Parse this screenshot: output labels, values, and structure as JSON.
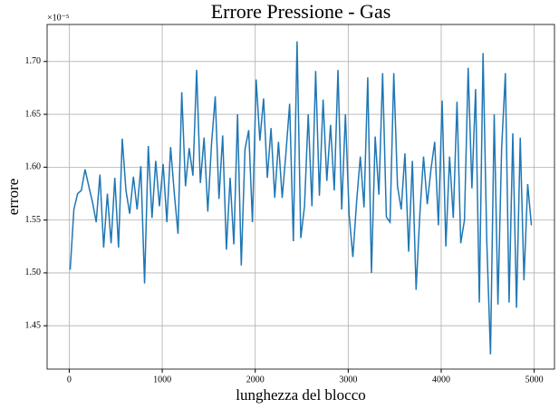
{
  "chart_data": {
    "type": "line",
    "title": "Errore Pressione - Gas",
    "x_label": "lunghezza del blocco",
    "y_label": "errore",
    "y_offset_label": "×10⁻⁵",
    "x": [
      10,
      50,
      90,
      130,
      170,
      210,
      250,
      290,
      330,
      370,
      410,
      450,
      490,
      530,
      570,
      610,
      650,
      690,
      730,
      770,
      810,
      850,
      890,
      930,
      970,
      1010,
      1050,
      1090,
      1130,
      1170,
      1210,
      1250,
      1290,
      1330,
      1370,
      1410,
      1450,
      1490,
      1530,
      1570,
      1610,
      1650,
      1690,
      1730,
      1770,
      1810,
      1850,
      1890,
      1930,
      1970,
      2010,
      2050,
      2090,
      2130,
      2170,
      2210,
      2250,
      2290,
      2330,
      2370,
      2410,
      2450,
      2490,
      2530,
      2570,
      2610,
      2650,
      2690,
      2730,
      2770,
      2810,
      2850,
      2890,
      2930,
      2970,
      3010,
      3050,
      3090,
      3130,
      3170,
      3210,
      3250,
      3290,
      3330,
      3370,
      3410,
      3450,
      3490,
      3530,
      3570,
      3610,
      3650,
      3690,
      3730,
      3770,
      3810,
      3850,
      3890,
      3930,
      3970,
      4010,
      4050,
      4090,
      4130,
      4170,
      4210,
      4250,
      4290,
      4330,
      4370,
      4410,
      4450,
      4490,
      4530,
      4570,
      4610,
      4650,
      4690,
      4730,
      4770,
      4810,
      4850,
      4890,
      4930,
      4970
    ],
    "series": [
      {
        "color": "#1f77b4",
        "values": [
          1.503,
          1.56,
          1.575,
          1.578,
          1.598,
          1.582,
          1.567,
          1.548,
          1.593,
          1.524,
          1.575,
          1.528,
          1.59,
          1.524,
          1.627,
          1.578,
          1.556,
          1.591,
          1.56,
          1.601,
          1.49,
          1.62,
          1.552,
          1.606,
          1.563,
          1.603,
          1.548,
          1.619,
          1.575,
          1.537,
          1.671,
          1.582,
          1.618,
          1.592,
          1.692,
          1.585,
          1.628,
          1.558,
          1.622,
          1.667,
          1.57,
          1.63,
          1.522,
          1.59,
          1.527,
          1.65,
          1.507,
          1.617,
          1.635,
          1.548,
          1.683,
          1.625,
          1.665,
          1.59,
          1.637,
          1.571,
          1.624,
          1.571,
          1.613,
          1.66,
          1.53,
          1.719,
          1.533,
          1.563,
          1.65,
          1.563,
          1.691,
          1.573,
          1.664,
          1.587,
          1.64,
          1.578,
          1.692,
          1.56,
          1.65,
          1.555,
          1.515,
          1.567,
          1.61,
          1.562,
          1.685,
          1.5,
          1.629,
          1.574,
          1.689,
          1.553,
          1.548,
          1.689,
          1.582,
          1.56,
          1.613,
          1.52,
          1.606,
          1.484,
          1.555,
          1.61,
          1.565,
          1.598,
          1.624,
          1.545,
          1.663,
          1.525,
          1.61,
          1.552,
          1.662,
          1.528,
          1.55,
          1.694,
          1.58,
          1.674,
          1.472,
          1.708,
          1.53,
          1.423,
          1.65,
          1.47,
          1.618,
          1.689,
          1.472,
          1.632,
          1.467,
          1.628,
          1.493,
          1.584,
          1.545
        ]
      }
    ],
    "xlim": [
      -238,
      5218
    ],
    "xticks": [
      0,
      1000,
      2000,
      3000,
      4000,
      5000
    ],
    "ylim": [
      1.409,
      1.735
    ],
    "yticks": [
      1.45,
      {
        "value": 1.5,
        "label": "1.50"
      },
      1.55,
      {
        "value": 1.6,
        "label": "1.60"
      },
      1.65,
      {
        "value": 1.7,
        "label": "1.70"
      }
    ],
    "grid": true
  }
}
